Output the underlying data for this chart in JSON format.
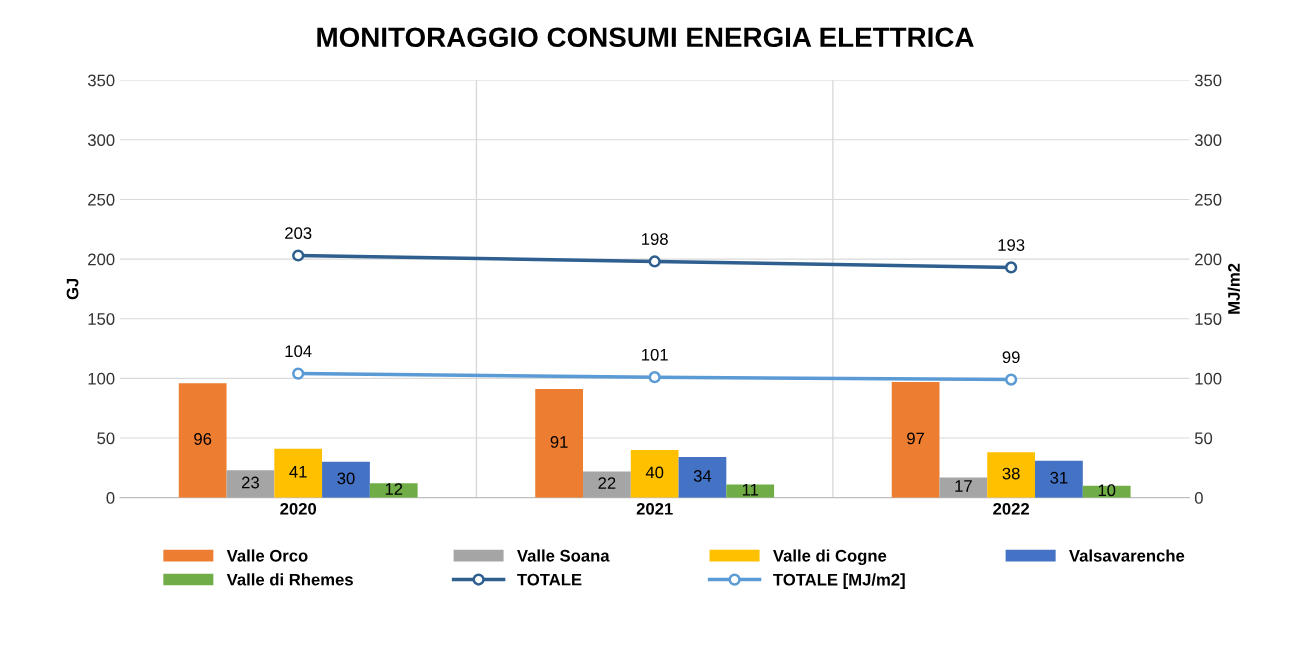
{
  "chart_data": {
    "type": "bar",
    "title": "MONITORAGGIO CONSUMI ENERGIA ELETTRICA",
    "ylabel": "GJ",
    "y2label": "MJ/m2",
    "categories": [
      "2020",
      "2021",
      "2022"
    ],
    "series": [
      {
        "name": "Valle Orco",
        "color": "#ed7d31",
        "values": [
          96,
          91,
          97
        ]
      },
      {
        "name": "Valle Soana",
        "color": "#a5a5a5",
        "values": [
          23,
          22,
          17
        ]
      },
      {
        "name": "Valle di Cogne",
        "color": "#ffc000",
        "values": [
          41,
          40,
          38
        ]
      },
      {
        "name": "Valsavarenche",
        "color": "#4472c4",
        "values": [
          30,
          34,
          31
        ]
      },
      {
        "name": "Valle di Rhemes",
        "color": "#70ad47",
        "values": [
          12,
          11,
          10
        ]
      },
      {
        "name": "TOTALE",
        "type": "line",
        "color": "#2e5f8f",
        "values": [
          203,
          198,
          193
        ]
      },
      {
        "name": "TOTALE [MJ/m2]",
        "type": "line",
        "color": "#5b9bd5",
        "values": [
          104,
          101,
          99
        ]
      }
    ],
    "ylim": [
      0,
      350
    ],
    "yticks": [
      0,
      50,
      100,
      150,
      200,
      250,
      300,
      350
    ],
    "y2lim": [
      0,
      350
    ],
    "y2ticks": [
      0,
      50,
      100,
      150,
      200,
      250,
      300,
      350
    ],
    "data_labels": true,
    "grid": true,
    "legend": "bottom",
    "marker": "circle",
    "line_style": "solid"
  }
}
